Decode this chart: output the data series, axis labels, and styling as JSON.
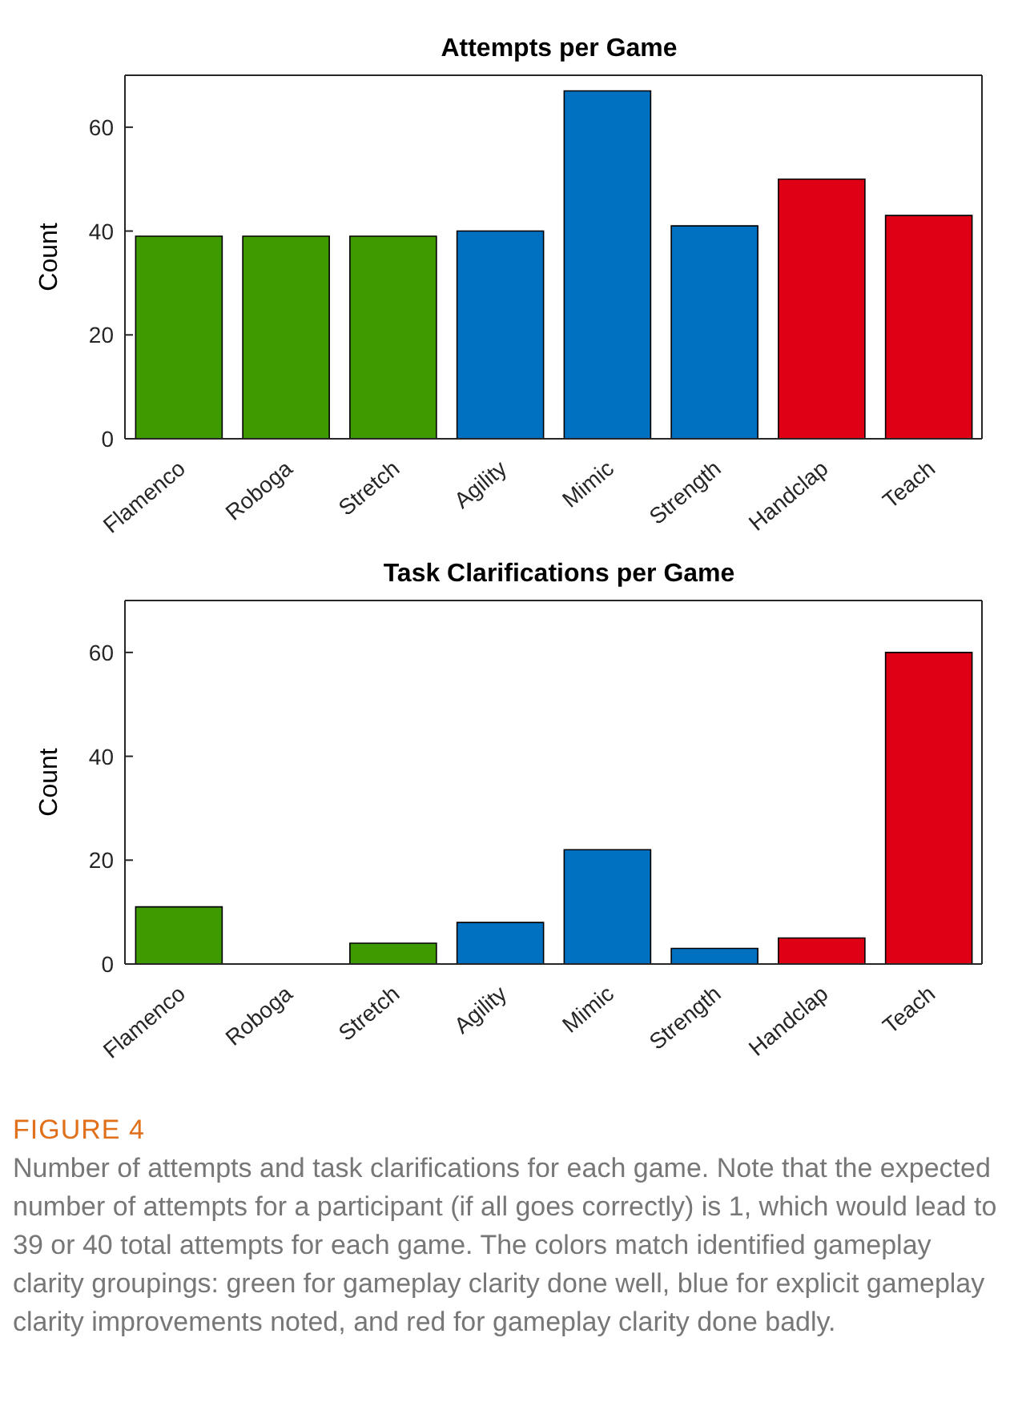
{
  "chart_data": [
    {
      "type": "bar",
      "title": "Attempts per Game",
      "ylabel": "Count",
      "categories": [
        "Flamenco",
        "Roboga",
        "Stretch",
        "Agility",
        "Mimic",
        "Strength",
        "Handclap",
        "Teach"
      ],
      "values": [
        39,
        39,
        39,
        40,
        67,
        41,
        50,
        43
      ],
      "colors": [
        "#3f9a00",
        "#3f9a00",
        "#3f9a00",
        "#0070c0",
        "#0070c0",
        "#0070c0",
        "#e00015",
        "#e00015"
      ],
      "ylim": [
        0,
        70
      ],
      "yticks": [
        0,
        20,
        40,
        60
      ],
      "grid": false,
      "legend": false
    },
    {
      "type": "bar",
      "title": "Task Clarifications per Game",
      "ylabel": "Count",
      "categories": [
        "Flamenco",
        "Roboga",
        "Stretch",
        "Agility",
        "Mimic",
        "Strength",
        "Handclap",
        "Teach"
      ],
      "values": [
        11,
        0,
        4,
        8,
        22,
        3,
        5,
        60
      ],
      "colors": [
        "#3f9a00",
        "#3f9a00",
        "#3f9a00",
        "#0070c0",
        "#0070c0",
        "#0070c0",
        "#e00015",
        "#e00015"
      ],
      "ylim": [
        0,
        70
      ],
      "yticks": [
        0,
        20,
        40,
        60
      ],
      "grid": false,
      "legend": false,
      "annotations": [
        "FIGURE 4",
        "Number of attempts and task clarifications for each game. Note that the expected number of attempts for a participant (if all goes correctly) is 1, which would lead to 39 or 40 total attempts for each game. The colors match identified gameplay clarity groupings: green for gameplay clarity done well, blue for explicit gameplay clarity improvements noted, and red for gameplay clarity done badly."
      ]
    }
  ]
}
